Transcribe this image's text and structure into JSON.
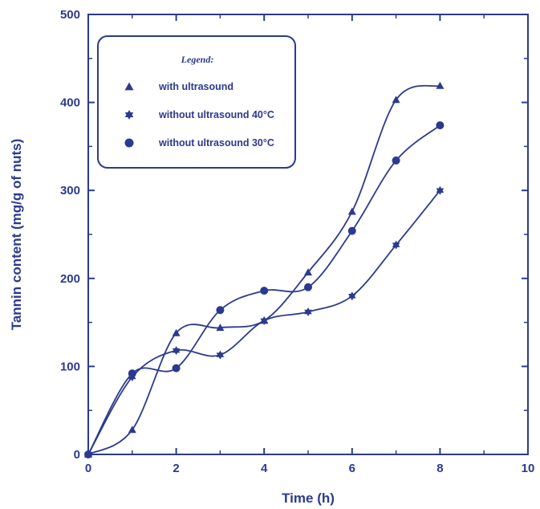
{
  "chart_data": {
    "type": "line",
    "xlabel": "Time (h)",
    "ylabel": "Tannin content (mg/g of nuts)",
    "xlim": [
      0,
      10
    ],
    "ylim": [
      0,
      500
    ],
    "xticks": [
      0,
      2,
      4,
      6,
      8,
      10
    ],
    "yticks": [
      0,
      100,
      200,
      300,
      400,
      500
    ],
    "grid": false,
    "legend": {
      "title": "Legend:",
      "position": "top-left"
    },
    "x": [
      0,
      1,
      2,
      3,
      4,
      5,
      6,
      7,
      8
    ],
    "series": [
      {
        "name": "with ultrasound",
        "marker": "triangle",
        "values": [
          0,
          28,
          138,
          144,
          152,
          207,
          276,
          403,
          419
        ]
      },
      {
        "name": "without ultrasound 40°C",
        "marker": "star",
        "values": [
          0,
          88,
          118,
          113,
          152,
          162,
          180,
          238,
          300
        ]
      },
      {
        "name": "without ultrasound 30°C",
        "marker": "circle",
        "values": [
          0,
          92,
          98,
          164,
          186,
          190,
          254,
          334,
          374
        ]
      }
    ],
    "colors": {
      "line": "#2b3a8f",
      "text": "#2b3a8f"
    }
  }
}
